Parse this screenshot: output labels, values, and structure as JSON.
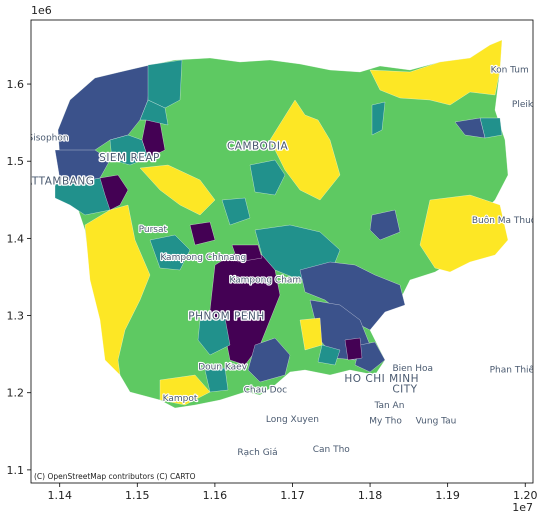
{
  "figure": {
    "x_exponent": "1e7",
    "y_exponent": "1e6",
    "x_ticks": [
      {
        "value": 11.4,
        "label": "1.14"
      },
      {
        "value": 11.5,
        "label": "1.15"
      },
      {
        "value": 11.6,
        "label": "1.16"
      },
      {
        "value": 11.7,
        "label": "1.17"
      },
      {
        "value": 11.8,
        "label": "1.18"
      },
      {
        "value": 11.9,
        "label": "1.19"
      },
      {
        "value": 12.0,
        "label": "1.20"
      }
    ],
    "y_ticks": [
      {
        "value": 1.1,
        "label": "1.1"
      },
      {
        "value": 1.2,
        "label": "1.2"
      },
      {
        "value": 1.3,
        "label": "1.3"
      },
      {
        "value": 1.4,
        "label": "1.4"
      },
      {
        "value": 1.5,
        "label": "1.5"
      },
      {
        "value": 1.6,
        "label": "1.6"
      }
    ],
    "x_range": [
      11.363,
      12.01
    ],
    "y_range": [
      1.083,
      1.683
    ],
    "attribution": "(C) OpenStreetMap contributors (C) CARTO",
    "colormap": "viridis",
    "colors": {
      "purple": "#440154",
      "blue": "#3b528b",
      "teal": "#21918c",
      "green": "#5ec962",
      "yellow": "#fde725"
    }
  },
  "map_labels": [
    {
      "text": "Kon Tum",
      "x": 11.98,
      "y": 1.615
    },
    {
      "text": "Pleiku",
      "x": 12.0,
      "y": 1.57
    },
    {
      "text": "Sisophon",
      "x": 11.385,
      "y": 1.527
    },
    {
      "text": "SIEM REAP",
      "x": 11.49,
      "y": 1.5
    },
    {
      "text": "CAMBODIA",
      "x": 11.655,
      "y": 1.515
    },
    {
      "text": "BATTAMBANG",
      "x": 11.395,
      "y": 1.47
    },
    {
      "text": "Buôn Ma Thuột",
      "x": 11.975,
      "y": 1.42
    },
    {
      "text": "Pursat",
      "x": 11.52,
      "y": 1.408
    },
    {
      "text": "Kampong Chhnang",
      "x": 11.585,
      "y": 1.372
    },
    {
      "text": "Kampong Cham",
      "x": 11.665,
      "y": 1.343
    },
    {
      "text": "PHNOM PENH",
      "x": 11.615,
      "y": 1.295
    },
    {
      "text": "Bien Hoa",
      "x": 11.855,
      "y": 1.228
    },
    {
      "text": "Doun Kaev",
      "x": 11.61,
      "y": 1.23
    },
    {
      "text": "Phan Thiết",
      "x": 11.985,
      "y": 1.226
    },
    {
      "text": "HO CHI MINH",
      "x": 11.815,
      "y": 1.214
    },
    {
      "text": "CITY",
      "x": 11.845,
      "y": 1.2
    },
    {
      "text": "Chau Doc",
      "x": 11.665,
      "y": 1.2
    },
    {
      "text": "Kampot",
      "x": 11.555,
      "y": 1.189
    },
    {
      "text": "Tan An",
      "x": 11.825,
      "y": 1.18
    },
    {
      "text": "Long Xuyen",
      "x": 11.7,
      "y": 1.162
    },
    {
      "text": "My Tho",
      "x": 11.82,
      "y": 1.16
    },
    {
      "text": "Vung Tau",
      "x": 11.885,
      "y": 1.16
    },
    {
      "text": "Can Tho",
      "x": 11.75,
      "y": 1.123
    },
    {
      "text": "Rạch Giá",
      "x": 11.655,
      "y": 1.119
    }
  ]
}
